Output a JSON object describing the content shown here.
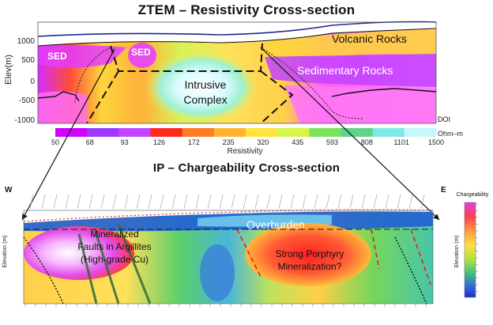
{
  "ztem": {
    "title": "ZTEM – Resistivity Cross-section",
    "y_axis_label": "Elev(m)",
    "y_ticks": [
      "1000",
      "500",
      "0",
      "-500",
      "-1000"
    ],
    "labels": {
      "sed_left": "SED",
      "sed_mid": "SED",
      "volcanic": "Volcanic Rocks",
      "sedimentary": "Sedimentary Rocks",
      "intrusive_1": "Intrusive",
      "intrusive_2": "Complex",
      "doi": "DOI"
    },
    "colorbar": {
      "unit": "Ohm–m",
      "title": "Resistivity",
      "ticks": [
        "50",
        "68",
        "93",
        "126",
        "172",
        "235",
        "320",
        "435",
        "593",
        "808",
        "1101",
        "1500"
      ],
      "colors": [
        "#d200ff",
        "#9b39ff",
        "#c246ff",
        "#ff2a1e",
        "#ff7b24",
        "#ffb431",
        "#ffe53b",
        "#d6f54a",
        "#7ce25d",
        "#5fd28c",
        "#7ee8e4",
        "#c7f6fb"
      ]
    }
  },
  "ip": {
    "title": "IP – Chargeability Cross-section",
    "west": "W",
    "east": "E",
    "y_axis_label_left": "Elevation (m)",
    "y_axis_label_right": "Elevation (m)",
    "labels": {
      "overburden": "Overburden",
      "mineralized_1": "Mineralized",
      "mineralized_2": "Faults in Argillites",
      "mineralized_3": "(High-grade Cu)",
      "porphyry_1": "Strong Porphyry",
      "porphyry_2": "Mineralization?"
    },
    "legend": {
      "title": "Chargeability",
      "colors": [
        "#e040e0",
        "#f070c0",
        "#ff4050",
        "#ff7040",
        "#ff9a40",
        "#ffc040",
        "#ffe040",
        "#e8f040",
        "#b0e040",
        "#70d040",
        "#40c080",
        "#40a0d0",
        "#3060e0",
        "#2030c0"
      ]
    }
  }
}
